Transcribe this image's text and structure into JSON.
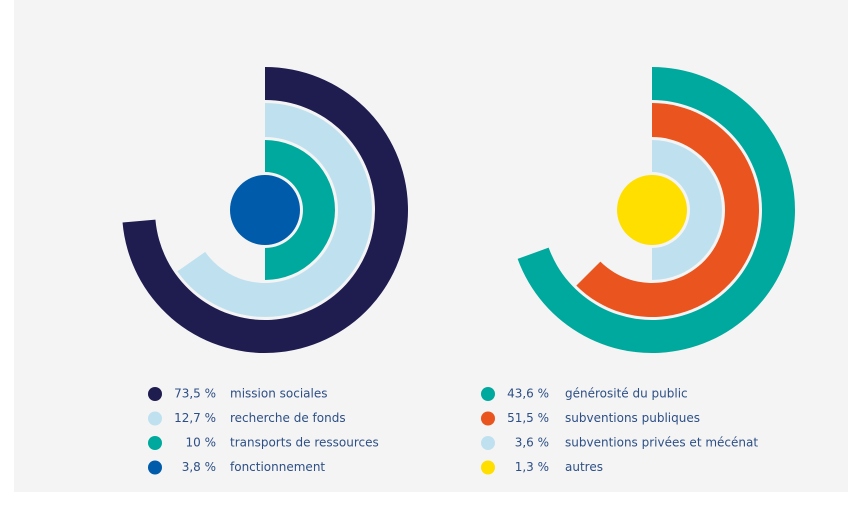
{
  "chart_data": [
    {
      "type": "radial",
      "categories": [
        "mission sociales",
        "recherche de fonds",
        "transports de ressources",
        "fonctionnement"
      ],
      "values": [
        73.5,
        12.7,
        10,
        3.8
      ],
      "value_labels": [
        "73,5 %",
        "12,7 %",
        "10 %",
        "3,8 %"
      ],
      "colors": [
        "#1f1c50",
        "#bfe1ef",
        "#00a99d",
        "#005bab"
      ]
    },
    {
      "type": "radial",
      "categories": [
        "générosité du public",
        "subventions publiques",
        "subventions privées et mécénat",
        "autres"
      ],
      "values": [
        43.6,
        51.5,
        3.6,
        1.3
      ],
      "value_labels": [
        "43,6 %",
        "51,5 %",
        "3,6 %",
        "1,3 %"
      ],
      "colors": [
        "#00a99d",
        "#e9541f",
        "#bfe1ef",
        "#ffdf00"
      ]
    }
  ]
}
